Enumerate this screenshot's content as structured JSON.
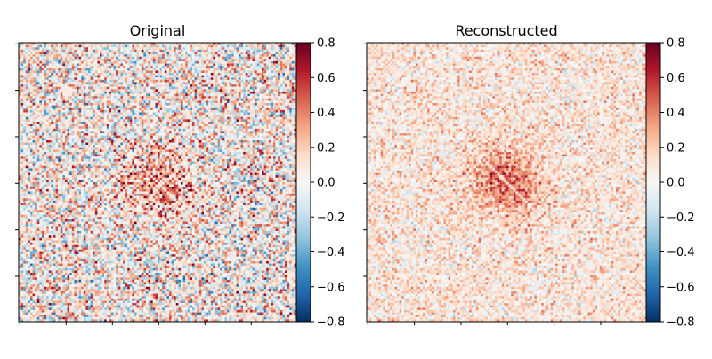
{
  "chart_data": [
    {
      "type": "heatmap",
      "title": "Original",
      "matrix_size": 120,
      "colormap": "RdBu_r",
      "vmin": -0.8,
      "vmax": 0.8,
      "symmetric": true,
      "xticklabels": [
        "",
        "",
        "",
        "",
        "",
        ""
      ],
      "yticklabels": [
        "",
        "",
        "",
        "",
        "",
        ""
      ],
      "colorbar": {
        "ticks": [
          0.8,
          0.6,
          0.4,
          0.2,
          0.0,
          -0.2,
          -0.4,
          -0.6,
          -0.8
        ],
        "ticklabels": [
          "0.8",
          "0.6",
          "0.4",
          "0.2",
          "0.0",
          "−0.2",
          "−0.4",
          "−0.6",
          "−0.8"
        ]
      }
    },
    {
      "type": "heatmap",
      "title": "Reconstructed",
      "matrix_size": 120,
      "colormap": "RdBu_r",
      "vmin": -0.8,
      "vmax": 0.8,
      "symmetric": true,
      "xticklabels": [
        "",
        "",
        "",
        "",
        "",
        ""
      ],
      "yticklabels": [
        "",
        "",
        "",
        "",
        "",
        ""
      ],
      "colorbar": {
        "ticks": [
          0.8,
          0.6,
          0.4,
          0.2,
          0.0,
          -0.2,
          -0.4,
          -0.6,
          -0.8
        ],
        "ticklabels": [
          "0.8",
          "0.6",
          "0.4",
          "0.2",
          "0.0",
          "−0.2",
          "−0.4",
          "−0.6",
          "−0.8"
        ]
      }
    }
  ]
}
